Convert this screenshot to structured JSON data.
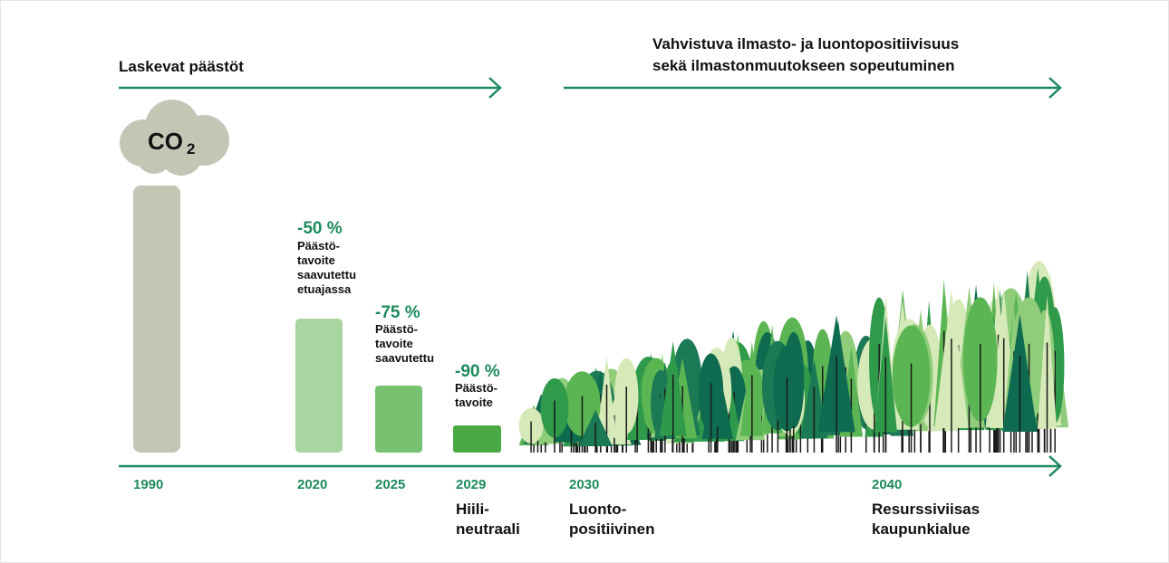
{
  "header": {
    "left_title": "Laskevat päästöt",
    "right_title": [
      "Vahvistuva ilmasto- ja luontopositiivisuus",
      "sekä ilmastonmuutokseen sopeutuminen"
    ]
  },
  "cloud": {
    "text": "CO",
    "subscript": "2"
  },
  "targets": [
    {
      "percent": "-50 %",
      "lines": [
        "Päästö-",
        "tavoite",
        "saavutettu",
        "etuajassa"
      ]
    },
    {
      "percent": "-75 %",
      "lines": [
        "Päästö-",
        "tavoite",
        "saavutettu"
      ]
    },
    {
      "percent": "-90 %",
      "lines": [
        "Päästö-",
        "tavoite"
      ]
    }
  ],
  "timeline": [
    {
      "year": "1990",
      "lines": []
    },
    {
      "year": "2020",
      "lines": []
    },
    {
      "year": "2025",
      "lines": []
    },
    {
      "year": "2029",
      "lines": [
        "Hiili-",
        "neutraali"
      ]
    },
    {
      "year": "2030",
      "lines": [
        "Luonto-",
        "positiivinen"
      ]
    },
    {
      "year": "2040",
      "lines": [
        "Resurssiviisas",
        "kaupunkialue"
      ]
    }
  ]
}
